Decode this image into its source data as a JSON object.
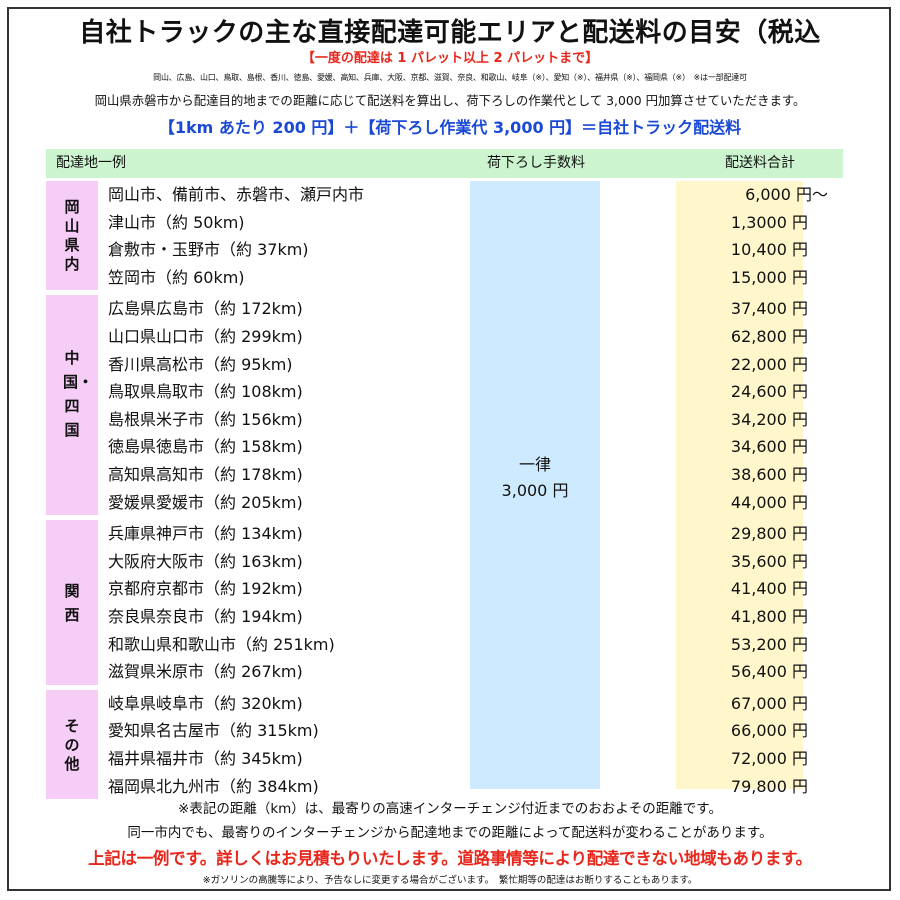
{
  "title": "自社トラックの主な直接配達可能エリアと配送料の目安（税込",
  "subtitle": "【一度の配達は 1 パレット以上 2 パレットまで】",
  "areas": "岡山、広島、山口、鳥取、島根、香川、徳島、愛媛、高知、兵庫、大阪、京都、滋賀、奈良、和歌山、岐阜（※）、愛知（※）、福井県（※）、福岡県（※）　※は一部配達可",
  "explanation": "岡山県赤磐市から配達目的地までの距離に応じて配送料を算出し、荷下ろしの作業代として 3,000 円加算させていただきます。",
  "formula": "【1km あたり 200 円】＋【荷下ろし作業代 3,000 円】＝自社トラック配送料",
  "table": {
    "headers": {
      "destination": "配達地一例",
      "unloading_fee": "荷下ろし手数料",
      "total": "配送料合計"
    },
    "unloading_fee": {
      "line1": "一律",
      "line2": "3,000 円"
    },
    "regions": [
      {
        "label": "岡山県内",
        "rows": [
          {
            "city": "岡山市、備前市、赤磐市、瀬戸内市",
            "price": "6,000 円～"
          },
          {
            "city": "津山市（約 50km)",
            "price": "1,3000 円"
          },
          {
            "city": "倉敷市・玉野市（約 37km)",
            "price": "10,400 円"
          },
          {
            "city": "笠岡市（約 60km)",
            "price": "15,000 円"
          }
        ]
      },
      {
        "label": "中国・四国",
        "rows": [
          {
            "city": "広島県広島市（約 172km)",
            "price": "37,400 円"
          },
          {
            "city": "山口県山口市（約 299km)",
            "price": "62,800 円"
          },
          {
            "city": "香川県高松市（約 95km)",
            "price": "22,000 円"
          },
          {
            "city": "鳥取県鳥取市（約 108km)",
            "price": "24,600 円"
          },
          {
            "city": "島根県米子市（約 156km)",
            "price": "34,200 円"
          },
          {
            "city": "徳島県徳島市（約 158km)",
            "price": "34,600 円"
          },
          {
            "city": "高知県高知市（約 178km)",
            "price": "38,600 円"
          },
          {
            "city": "愛媛県愛媛市（約 205km)",
            "price": "44,000 円"
          }
        ]
      },
      {
        "label": "関西",
        "rows": [
          {
            "city": "兵庫県神戸市（約 134km)",
            "price": "29,800 円"
          },
          {
            "city": "大阪府大阪市（約 163km)",
            "price": "35,600 円"
          },
          {
            "city": "京都府京都市（約 192km)",
            "price": "41,400 円"
          },
          {
            "city": "奈良県奈良市（約 194km)",
            "price": "41,800 円"
          },
          {
            "city": "和歌山県和歌山市（約 251km)",
            "price": "53,200 円"
          },
          {
            "city": "滋賀県米原市（約 267km)",
            "price": "56,400 円"
          }
        ]
      },
      {
        "label": "その他",
        "rows": [
          {
            "city": "岐阜県岐阜市（約 320km)",
            "price": "67,000 円"
          },
          {
            "city": "愛知県名古屋市（約 315km)",
            "price": "66,000 円"
          },
          {
            "city": "福井県福井市（約 345km)",
            "price": "72,000 円"
          },
          {
            "city": "福岡県北九州市（約 384km)",
            "price": "79,800 円"
          }
        ]
      }
    ]
  },
  "notes": {
    "note1": "※表記の距離（km）は、最寄りの高速インターチェンジ付近までのおおよその距離です。",
    "note2": "同一市内でも、最寄りのインターチェンジから配達地までの距離によって配送料が変わることがあります。",
    "note3": "上記は一例です。詳しくはお見積もりいたします。道路事情等により配達できない地域もあります。",
    "note4": "※ガソリンの高騰等により、予告なしに変更する場合がございます。　繁忙期等の配達はお断りすることもあります。"
  },
  "colors": {
    "accent_red": "#e8271c",
    "accent_blue": "#1a49d6",
    "header_green": "#ccf5cf",
    "region_pink": "#f6cdf6",
    "fee_blue": "#cdeaff",
    "total_yellow": "#fff6cc"
  }
}
